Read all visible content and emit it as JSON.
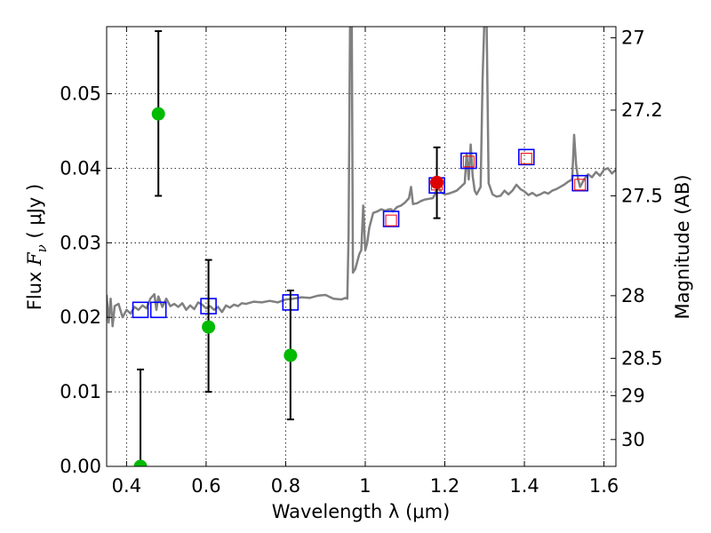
{
  "chart_data": {
    "type": "scatter",
    "xlabel": "Wavelength  λ (μm)",
    "ylabel": {
      "prefix": "Flux  ",
      "symbol": "F",
      "subscript": "ν",
      "units": "  ( μJy )"
    },
    "ylabel_right": "Magnitude (AB)",
    "xlim": [
      0.35,
      1.63
    ],
    "ylim": [
      0.0,
      0.059
    ],
    "grid": true,
    "x_ticks": [
      0.4,
      0.6,
      0.8,
      1.0,
      1.2,
      1.4,
      1.6
    ],
    "x_tick_labels": [
      "0.4",
      "0.6",
      "0.8",
      "1",
      "1.2",
      "1.4",
      "1.6"
    ],
    "y_ticks": [
      0.0,
      0.01,
      0.02,
      0.03,
      0.04,
      0.05
    ],
    "y_tick_labels": [
      "0.00",
      "0.01",
      "0.02",
      "0.03",
      "0.04",
      "0.05"
    ],
    "right_ticks": [
      {
        "label": "27",
        "flux": 0.0575
      },
      {
        "label": "27.2",
        "flux": 0.0478
      },
      {
        "label": "27.5",
        "flux": 0.0363
      },
      {
        "label": "28",
        "flux": 0.0229
      },
      {
        "label": "28.5",
        "flux": 0.0145
      },
      {
        "label": "29",
        "flux": 0.0095
      },
      {
        "label": "30",
        "flux": 0.0036
      }
    ],
    "series": [
      {
        "name": "model spectrum",
        "kind": "line",
        "color": "#808080",
        "points": [
          [
            0.35,
            0.023
          ],
          [
            0.355,
            0.0193
          ],
          [
            0.36,
            0.0225
          ],
          [
            0.365,
            0.0188
          ],
          [
            0.37,
            0.0215
          ],
          [
            0.38,
            0.0218
          ],
          [
            0.39,
            0.02
          ],
          [
            0.4,
            0.021
          ],
          [
            0.41,
            0.0205
          ],
          [
            0.42,
            0.0214
          ],
          [
            0.43,
            0.021
          ],
          [
            0.44,
            0.0216
          ],
          [
            0.45,
            0.0212
          ],
          [
            0.46,
            0.0225
          ],
          [
            0.47,
            0.0231
          ],
          [
            0.475,
            0.021
          ],
          [
            0.48,
            0.0228
          ],
          [
            0.49,
            0.0214
          ],
          [
            0.5,
            0.0225
          ],
          [
            0.51,
            0.0215
          ],
          [
            0.52,
            0.0218
          ],
          [
            0.53,
            0.0214
          ],
          [
            0.54,
            0.0219
          ],
          [
            0.55,
            0.021
          ],
          [
            0.56,
            0.0216
          ],
          [
            0.57,
            0.0211
          ],
          [
            0.58,
            0.022
          ],
          [
            0.59,
            0.0217
          ],
          [
            0.6,
            0.0212
          ],
          [
            0.61,
            0.0215
          ],
          [
            0.62,
            0.021
          ],
          [
            0.63,
            0.0214
          ],
          [
            0.64,
            0.0207
          ],
          [
            0.65,
            0.0216
          ],
          [
            0.66,
            0.0213
          ],
          [
            0.67,
            0.0217
          ],
          [
            0.68,
            0.0215
          ],
          [
            0.69,
            0.0219
          ],
          [
            0.7,
            0.0218
          ],
          [
            0.72,
            0.0221
          ],
          [
            0.74,
            0.022
          ],
          [
            0.76,
            0.0222
          ],
          [
            0.78,
            0.022
          ],
          [
            0.8,
            0.0224
          ],
          [
            0.82,
            0.0225
          ],
          [
            0.84,
            0.0227
          ],
          [
            0.86,
            0.0226
          ],
          [
            0.88,
            0.0229
          ],
          [
            0.9,
            0.023
          ],
          [
            0.92,
            0.0225
          ],
          [
            0.94,
            0.0224
          ],
          [
            0.95,
            0.0226
          ],
          [
            0.955,
            0.0225
          ],
          [
            0.958,
            0.031
          ],
          [
            0.962,
            0.062
          ],
          [
            0.966,
            0.06
          ],
          [
            0.969,
            0.026
          ],
          [
            0.975,
            0.0265
          ],
          [
            0.985,
            0.0285
          ],
          [
            0.99,
            0.029
          ],
          [
            0.995,
            0.035
          ],
          [
            1.0,
            0.029
          ],
          [
            1.005,
            0.03
          ],
          [
            1.01,
            0.032
          ],
          [
            1.015,
            0.033
          ],
          [
            1.02,
            0.034
          ],
          [
            1.03,
            0.0342
          ],
          [
            1.04,
            0.0345
          ],
          [
            1.05,
            0.0343
          ],
          [
            1.06,
            0.0345
          ],
          [
            1.065,
            0.0345
          ],
          [
            1.07,
            0.0342
          ],
          [
            1.08,
            0.0348
          ],
          [
            1.09,
            0.035
          ],
          [
            1.1,
            0.0354
          ],
          [
            1.11,
            0.036
          ],
          [
            1.115,
            0.0375
          ],
          [
            1.12,
            0.0352
          ],
          [
            1.13,
            0.0353
          ],
          [
            1.14,
            0.0356
          ],
          [
            1.15,
            0.0358
          ],
          [
            1.16,
            0.0359
          ],
          [
            1.17,
            0.036
          ],
          [
            1.175,
            0.0365
          ],
          [
            1.18,
            0.0373
          ],
          [
            1.185,
            0.0374
          ],
          [
            1.19,
            0.0368
          ],
          [
            1.2,
            0.0365
          ],
          [
            1.21,
            0.0366
          ],
          [
            1.22,
            0.0368
          ],
          [
            1.23,
            0.037
          ],
          [
            1.24,
            0.0375
          ],
          [
            1.25,
            0.038
          ],
          [
            1.255,
            0.042
          ],
          [
            1.26,
            0.0385
          ],
          [
            1.265,
            0.0432
          ],
          [
            1.27,
            0.039
          ],
          [
            1.275,
            0.037
          ],
          [
            1.28,
            0.0365
          ],
          [
            1.29,
            0.0375
          ],
          [
            1.295,
            0.052
          ],
          [
            1.3,
            0.061
          ],
          [
            1.305,
            0.06
          ],
          [
            1.31,
            0.038
          ],
          [
            1.32,
            0.0365
          ],
          [
            1.33,
            0.0362
          ],
          [
            1.34,
            0.0363
          ],
          [
            1.35,
            0.037
          ],
          [
            1.36,
            0.0365
          ],
          [
            1.37,
            0.037
          ],
          [
            1.38,
            0.0378
          ],
          [
            1.39,
            0.0372
          ],
          [
            1.4,
            0.0369
          ],
          [
            1.41,
            0.0364
          ],
          [
            1.42,
            0.0367
          ],
          [
            1.43,
            0.0363
          ],
          [
            1.44,
            0.0365
          ],
          [
            1.45,
            0.0368
          ],
          [
            1.46,
            0.0366
          ],
          [
            1.47,
            0.037
          ],
          [
            1.48,
            0.0372
          ],
          [
            1.49,
            0.0375
          ],
          [
            1.5,
            0.0378
          ],
          [
            1.51,
            0.0382
          ],
          [
            1.52,
            0.0385
          ],
          [
            1.525,
            0.0445
          ],
          [
            1.53,
            0.0405
          ],
          [
            1.535,
            0.0385
          ],
          [
            1.54,
            0.0375
          ],
          [
            1.55,
            0.0385
          ],
          [
            1.56,
            0.0392
          ],
          [
            1.57,
            0.0388
          ],
          [
            1.58,
            0.0395
          ],
          [
            1.59,
            0.039
          ],
          [
            1.6,
            0.0398
          ],
          [
            1.61,
            0.04
          ],
          [
            1.62,
            0.0393
          ],
          [
            1.63,
            0.0398
          ]
        ]
      },
      {
        "name": "model photometry (blue squares)",
        "kind": "square",
        "color": "#0000ff",
        "points": [
          [
            0.435,
            0.021
          ],
          [
            0.48,
            0.021
          ],
          [
            0.606,
            0.0215
          ],
          [
            0.812,
            0.022
          ],
          [
            1.065,
            0.0332
          ],
          [
            1.18,
            0.0377
          ],
          [
            1.26,
            0.041
          ],
          [
            1.405,
            0.0415
          ],
          [
            1.54,
            0.038
          ]
        ]
      },
      {
        "name": "model photometry (red squares)",
        "kind": "square-small",
        "color": "#ff0000",
        "points": [
          [
            1.065,
            0.033
          ],
          [
            1.18,
            0.0378
          ],
          [
            1.26,
            0.0409
          ],
          [
            1.405,
            0.0413
          ],
          [
            1.54,
            0.0378
          ]
        ]
      },
      {
        "name": "observed (green)",
        "kind": "errorbar",
        "color": "#00bb00",
        "points": [
          {
            "x": 0.435,
            "y": 0.0,
            "ylo": 0.0,
            "yhi": 0.013
          },
          {
            "x": 0.48,
            "y": 0.0473,
            "ylo": 0.0363,
            "yhi": 0.0584
          },
          {
            "x": 0.606,
            "y": 0.0187,
            "ylo": 0.01,
            "yhi": 0.0277
          },
          {
            "x": 0.812,
            "y": 0.0149,
            "ylo": 0.0063,
            "yhi": 0.0236
          }
        ]
      },
      {
        "name": "observed (red)",
        "kind": "errorbar",
        "color": "#dd0000",
        "points": [
          {
            "x": 1.18,
            "y": 0.0381,
            "ylo": 0.0333,
            "yhi": 0.0428
          }
        ]
      }
    ]
  }
}
